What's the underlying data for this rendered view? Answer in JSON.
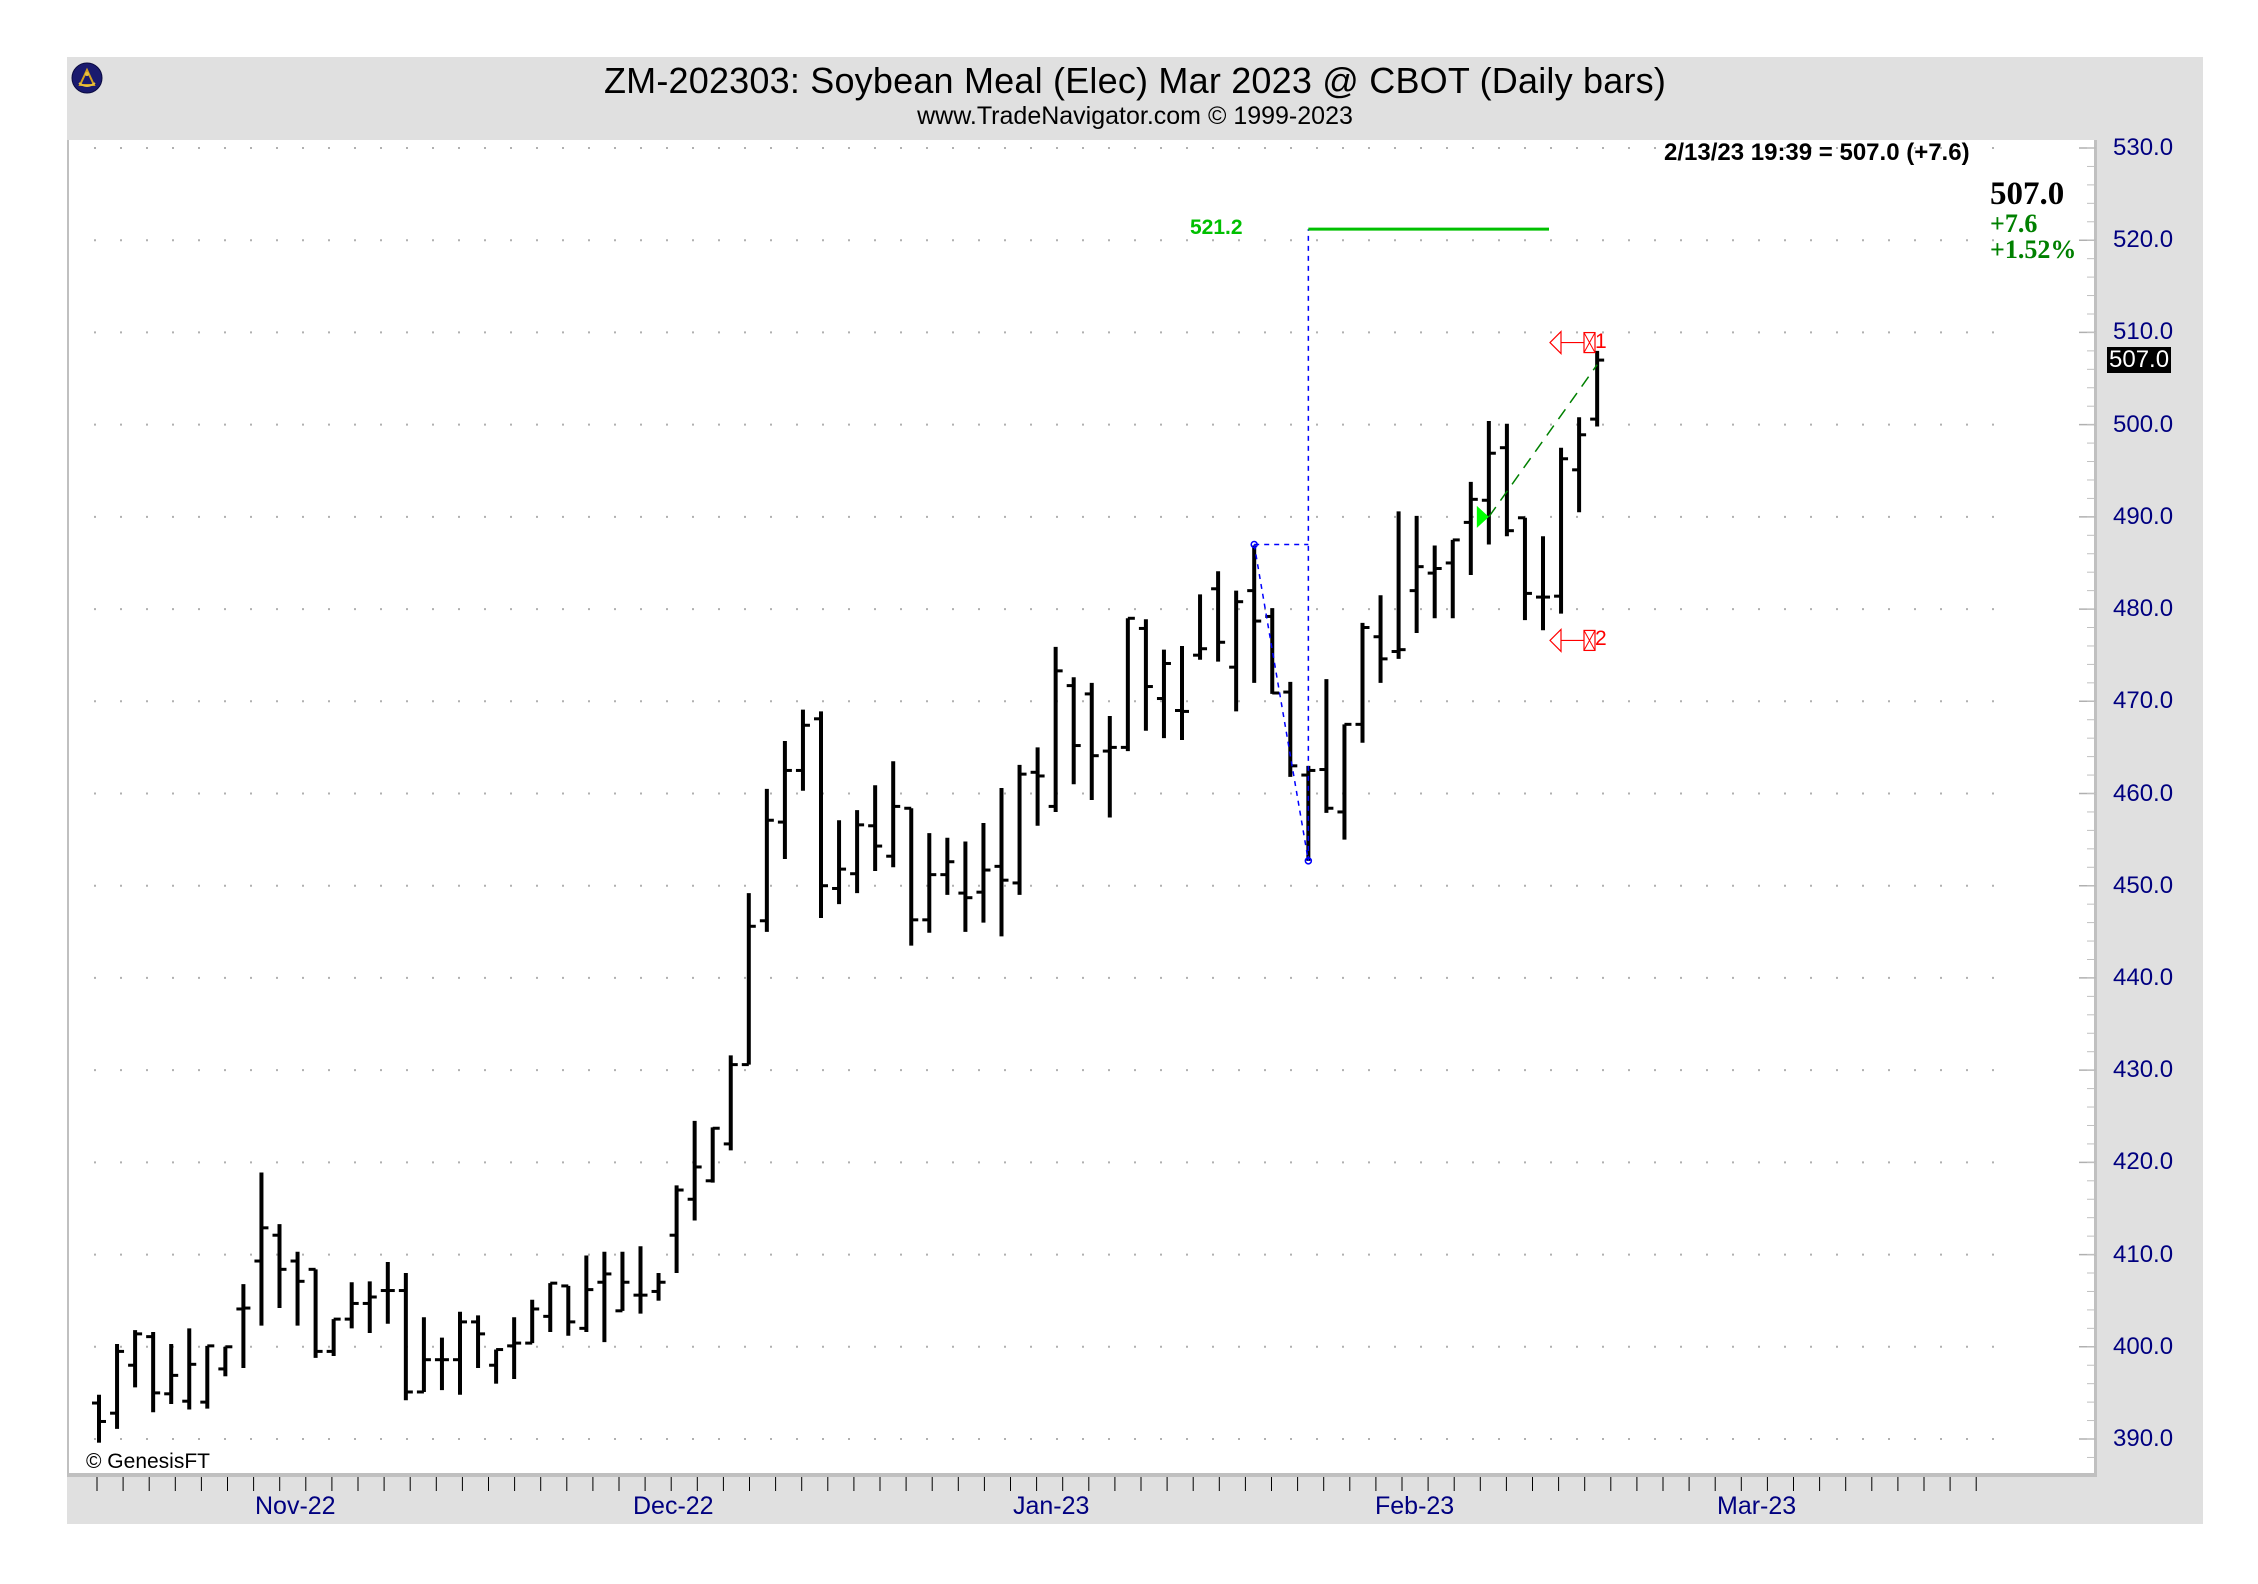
{
  "header": {
    "title": "ZM-202303:  Soybean Meal (Elec) Mar 2023 @ CBOT  (Daily bars)",
    "subtitle": "www.TradeNavigator.com © 1999-2023",
    "logo_icon": "sextant-logo-icon"
  },
  "quote": {
    "line": "2/13/23 19:39 = 507.0 (+7.6)",
    "last": "507.0",
    "change": "+7.6",
    "percent": "+1.52%",
    "last_tag": "507.0"
  },
  "footer": {
    "copyright": "© GenesisFT"
  },
  "colors": {
    "frame": "#e0e0e0",
    "plot_bg": "#ffffff",
    "axis_text": "#000080",
    "bars": "#000000",
    "target_line": "#00c000",
    "change_text": "#008000",
    "projection": "#0000ff",
    "marker": "#ff0000",
    "trend_dash": "#008000",
    "signal_triangle": "#00ff00"
  },
  "annotations": {
    "target_label": "521.2",
    "target_value": 521.2,
    "marker_1_label": "1",
    "marker_1_value": 508.9,
    "marker_2_label": "2",
    "marker_2_value": 476.6
  },
  "chart_data": {
    "type": "ohlc",
    "title": "ZM-202303: Soybean Meal (Elec) Mar 2023 @ CBOT (Daily bars)",
    "xlabel": "",
    "ylabel": "",
    "ylim": [
      387,
      531
    ],
    "yticks": [
      "530.0",
      "520.0",
      "510.0",
      "500.0",
      "490.0",
      "480.0",
      "470.0",
      "460.0",
      "450.0",
      "440.0",
      "430.0",
      "420.0",
      "410.0",
      "400.0",
      "390.0"
    ],
    "xticks": [
      "Nov-22",
      "Dec-22",
      "Jan-23",
      "Feb-23",
      "Mar-23"
    ],
    "grid": true,
    "legend": "none",
    "last_value": 507.0,
    "bars": [
      {
        "o": 393.9,
        "h": 394.8,
        "l": 389.6,
        "c": 391.9
      },
      {
        "o": 392.8,
        "h": 400.3,
        "l": 391.1,
        "c": 399.5
      },
      {
        "o": 398.0,
        "h": 401.8,
        "l": 395.6,
        "c": 401.4
      },
      {
        "o": 401.1,
        "h": 401.6,
        "l": 392.9,
        "c": 395.0
      },
      {
        "o": 394.9,
        "h": 400.3,
        "l": 393.8,
        "c": 396.9
      },
      {
        "o": 394.1,
        "h": 402.0,
        "l": 393.2,
        "c": 398.1
      },
      {
        "o": 394.0,
        "h": 400.1,
        "l": 393.3,
        "c": 400.1
      },
      {
        "o": 397.6,
        "h": 400.0,
        "l": 396.8,
        "c": 400.0
      },
      {
        "o": 404.1,
        "h": 406.8,
        "l": 397.7,
        "c": 404.2
      },
      {
        "o": 409.3,
        "h": 418.9,
        "l": 402.3,
        "c": 412.9
      },
      {
        "o": 412.1,
        "h": 413.3,
        "l": 404.2,
        "c": 408.4
      },
      {
        "o": 409.3,
        "h": 410.3,
        "l": 402.3,
        "c": 407.1
      },
      {
        "o": 408.4,
        "h": 408.4,
        "l": 398.8,
        "c": 399.5
      },
      {
        "o": 399.5,
        "h": 403.0,
        "l": 399.0,
        "c": 403.0
      },
      {
        "o": 403.0,
        "h": 407.0,
        "l": 402.0,
        "c": 404.7
      },
      {
        "o": 404.7,
        "h": 407.1,
        "l": 401.5,
        "c": 405.4
      },
      {
        "o": 406.1,
        "h": 409.2,
        "l": 402.5,
        "c": 406.1
      },
      {
        "o": 406.1,
        "h": 408.0,
        "l": 394.2,
        "c": 395.1
      },
      {
        "o": 395.1,
        "h": 403.2,
        "l": 395.4,
        "c": 398.6
      },
      {
        "o": 398.6,
        "h": 401.0,
        "l": 395.3,
        "c": 398.6
      },
      {
        "o": 398.6,
        "h": 403.8,
        "l": 394.8,
        "c": 402.7
      },
      {
        "o": 402.7,
        "h": 403.4,
        "l": 397.7,
        "c": 401.4
      },
      {
        "o": 398.0,
        "h": 399.4,
        "l": 396.0,
        "c": 399.7
      },
      {
        "o": 400.1,
        "h": 403.2,
        "l": 396.5,
        "c": 400.4
      },
      {
        "o": 400.4,
        "h": 405.1,
        "l": 400.4,
        "c": 404.1
      },
      {
        "o": 403.3,
        "h": 406.4,
        "l": 401.6,
        "c": 406.9
      },
      {
        "o": 406.6,
        "h": 402.0,
        "l": 401.2,
        "c": 402.7
      },
      {
        "o": 402.0,
        "h": 409.9,
        "l": 401.6,
        "c": 406.2
      },
      {
        "o": 407.0,
        "h": 410.3,
        "l": 400.5,
        "c": 407.9
      },
      {
        "o": 403.9,
        "h": 410.3,
        "l": 404.6,
        "c": 407.0
      },
      {
        "o": 405.6,
        "h": 410.9,
        "l": 403.6,
        "c": 405.6
      },
      {
        "o": 406.0,
        "h": 408.0,
        "l": 405.0,
        "c": 407.0
      },
      {
        "o": 412.1,
        "h": 417.5,
        "l": 408.0,
        "c": 417.0
      },
      {
        "o": 416.0,
        "h": 424.5,
        "l": 413.7,
        "c": 419.5
      },
      {
        "o": 418.0,
        "h": 423.8,
        "l": 417.8,
        "c": 423.7
      },
      {
        "o": 422.0,
        "h": 431.6,
        "l": 421.3,
        "c": 430.6
      },
      {
        "o": 430.6,
        "h": 449.2,
        "l": 445.5,
        "c": 445.6
      },
      {
        "o": 446.2,
        "h": 460.5,
        "l": 445.0,
        "c": 457.1
      },
      {
        "o": 456.9,
        "h": 465.7,
        "l": 452.9,
        "c": 462.5
      },
      {
        "o": 462.5,
        "h": 469.1,
        "l": 460.3,
        "c": 467.4
      },
      {
        "o": 468.1,
        "h": 468.9,
        "l": 446.5,
        "c": 450.0
      },
      {
        "o": 449.7,
        "h": 457.1,
        "l": 448.0,
        "c": 451.8
      },
      {
        "o": 451.3,
        "h": 458.2,
        "l": 449.2,
        "c": 456.6
      },
      {
        "o": 456.5,
        "h": 460.9,
        "l": 451.6,
        "c": 454.3
      },
      {
        "o": 453.2,
        "h": 463.5,
        "l": 452.0,
        "c": 458.6
      },
      {
        "o": 458.4,
        "h": 458.2,
        "l": 443.5,
        "c": 446.3
      },
      {
        "o": 446.3,
        "h": 455.7,
        "l": 444.9,
        "c": 451.2
      },
      {
        "o": 451.2,
        "h": 455.2,
        "l": 449.0,
        "c": 452.6
      },
      {
        "o": 449.2,
        "h": 454.8,
        "l": 445.0,
        "c": 448.7
      },
      {
        "o": 449.3,
        "h": 456.8,
        "l": 446.0,
        "c": 451.7
      },
      {
        "o": 452.1,
        "h": 460.6,
        "l": 444.5,
        "c": 450.6
      },
      {
        "o": 450.3,
        "h": 463.1,
        "l": 449.0,
        "c": 462.1
      },
      {
        "o": 462.3,
        "h": 465.0,
        "l": 456.5,
        "c": 461.9
      },
      {
        "o": 458.6,
        "h": 475.9,
        "l": 458.0,
        "c": 473.3
      },
      {
        "o": 471.7,
        "h": 472.6,
        "l": 461.0,
        "c": 465.2
      },
      {
        "o": 470.8,
        "h": 472.0,
        "l": 459.3,
        "c": 464.1
      },
      {
        "o": 464.6,
        "h": 468.4,
        "l": 457.4,
        "c": 465.0
      },
      {
        "o": 465.0,
        "h": 479.0,
        "l": 464.6,
        "c": 479.0
      },
      {
        "o": 477.9,
        "h": 478.9,
        "l": 466.8,
        "c": 471.6
      },
      {
        "o": 470.3,
        "h": 475.6,
        "l": 466.0,
        "c": 474.1
      },
      {
        "o": 469.0,
        "h": 476.0,
        "l": 465.8,
        "c": 468.9
      },
      {
        "o": 475.0,
        "h": 481.6,
        "l": 474.5,
        "c": 475.7
      },
      {
        "o": 482.2,
        "h": 484.1,
        "l": 474.3,
        "c": 476.4
      },
      {
        "o": 473.7,
        "h": 482.0,
        "l": 468.9,
        "c": 480.8
      },
      {
        "o": 482.0,
        "h": 486.9,
        "l": 472.0,
        "c": 478.7
      },
      {
        "o": 479.2,
        "h": 480.1,
        "l": 470.8,
        "c": 470.9
      },
      {
        "o": 471.0,
        "h": 472.1,
        "l": 461.8,
        "c": 463.0
      },
      {
        "o": 462.0,
        "h": 463.0,
        "l": 452.7,
        "c": 462.5
      },
      {
        "o": 462.6,
        "h": 472.4,
        "l": 457.9,
        "c": 458.4
      },
      {
        "o": 458.0,
        "h": 467.5,
        "l": 455.0,
        "c": 467.5
      },
      {
        "o": 467.5,
        "h": 478.5,
        "l": 465.5,
        "c": 478.0
      },
      {
        "o": 477.0,
        "h": 481.5,
        "l": 472.0,
        "c": 474.6
      },
      {
        "o": 475.4,
        "h": 490.6,
        "l": 474.6,
        "c": 475.6
      },
      {
        "o": 482.0,
        "h": 490.1,
        "l": 477.4,
        "c": 484.6
      },
      {
        "o": 483.9,
        "h": 486.9,
        "l": 479.0,
        "c": 484.4
      },
      {
        "o": 485.0,
        "h": 487.3,
        "l": 479.0,
        "c": 487.5
      },
      {
        "o": 489.4,
        "h": 493.8,
        "l": 483.7,
        "c": 491.9
      },
      {
        "o": 491.8,
        "h": 500.4,
        "l": 487.0,
        "c": 496.9
      },
      {
        "o": 497.5,
        "h": 500.1,
        "l": 487.9,
        "c": 488.5
      },
      {
        "o": 489.9,
        "h": 489.8,
        "l": 478.8,
        "c": 481.7
      },
      {
        "o": 481.3,
        "h": 487.9,
        "l": 477.7,
        "c": 481.3
      },
      {
        "o": 481.4,
        "h": 497.5,
        "l": 479.5,
        "c": 496.3
      },
      {
        "o": 495.1,
        "h": 500.8,
        "l": 490.5,
        "c": 498.9
      },
      {
        "o": 500.6,
        "h": 508.0,
        "l": 499.8,
        "c": 507.0
      }
    ]
  },
  "xaxis": {
    "labels": [
      "Nov-22",
      "Dec-22",
      "Jan-23",
      "Feb-23",
      "Mar-23"
    ]
  }
}
